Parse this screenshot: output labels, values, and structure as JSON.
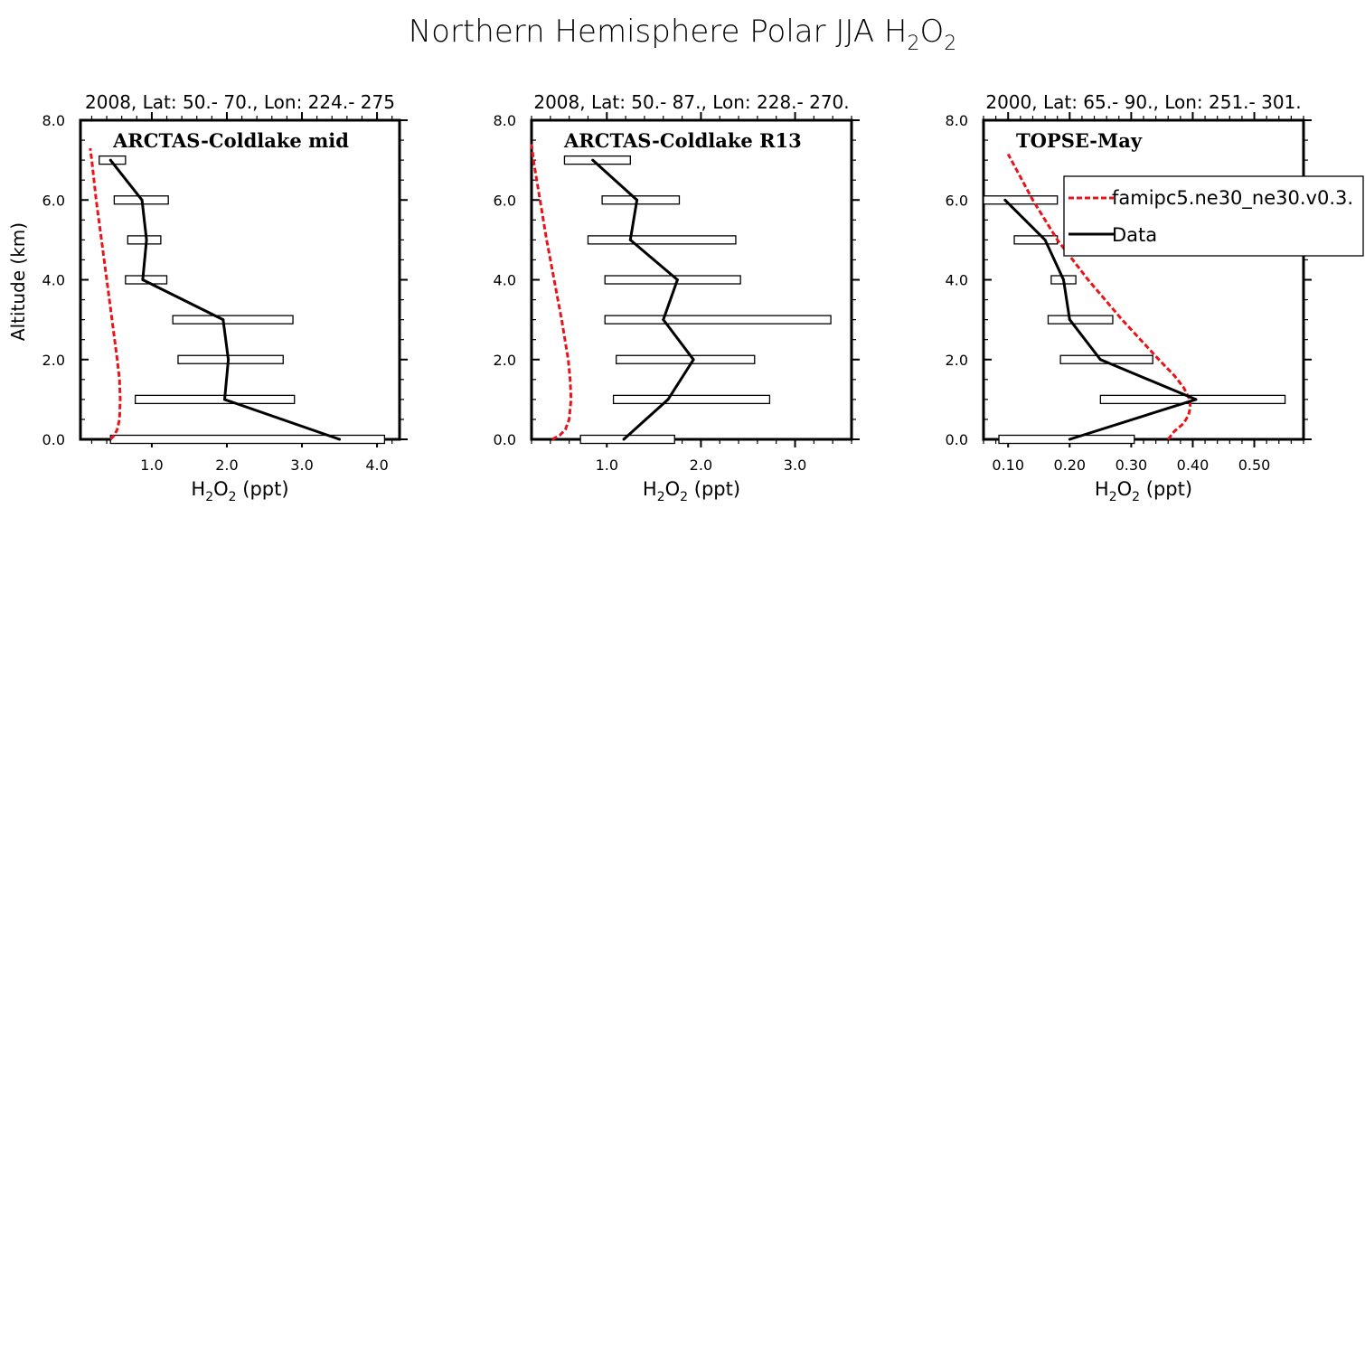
{
  "figure": {
    "title_main": "Northern Hemisphere Polar JJA H",
    "title_sub1": "2",
    "title_mid": "O",
    "title_sub2": "2"
  },
  "colors": {
    "model": "#e8141a",
    "data": "#000000"
  },
  "legend": {
    "model_label": "famipc5.ne30_ne30.v0.3.",
    "data_label": "Data"
  },
  "chart_data": [
    {
      "type": "line",
      "panel_label": "ARCTAS-Coldlake mid",
      "region": "2008, Lat:  50.- 70., Lon: 224.- 275",
      "xlabel": "H2O2 (ppt)",
      "ylabel": "Altitude (km)",
      "xlim": [
        0.05,
        4.3
      ],
      "ylim": [
        0,
        8
      ],
      "xticks": [
        1.0,
        2.0,
        3.0,
        4.0
      ],
      "xtick_labels": [
        "1.0",
        "2.0",
        "3.0",
        "4.0"
      ],
      "yticks": [
        0,
        2,
        4,
        6,
        8
      ],
      "ytick_labels": [
        "0.0",
        "2.0",
        "4.0",
        "6.0",
        "8.0"
      ],
      "data": {
        "altitude": [
          0,
          1,
          2,
          3,
          4,
          5,
          6,
          7
        ],
        "h2o2": [
          3.5,
          1.97,
          2.02,
          1.95,
          0.88,
          0.93,
          0.87,
          0.45
        ],
        "box_min": [
          0.45,
          0.78,
          1.35,
          1.28,
          0.65,
          0.68,
          0.5,
          0.3
        ],
        "box_max": [
          4.1,
          2.9,
          2.75,
          2.88,
          1.2,
          1.12,
          1.22,
          0.65
        ]
      },
      "model": {
        "altitude": [
          0.0,
          0.1,
          0.25,
          0.5,
          1.0,
          1.5,
          2.0,
          3.0,
          4.0,
          5.0,
          6.0,
          7.0,
          7.3
        ],
        "h2o2": [
          0.45,
          0.5,
          0.54,
          0.57,
          0.58,
          0.57,
          0.54,
          0.47,
          0.4,
          0.33,
          0.26,
          0.2,
          0.18
        ]
      }
    },
    {
      "type": "line",
      "panel_label": "ARCTAS-Coldlake R13",
      "region": "2008, Lat:  50.- 87., Lon: 228.- 270.",
      "xlabel": "H2O2 (ppt)",
      "ylabel": "",
      "xlim": [
        0.2,
        3.6
      ],
      "ylim": [
        0,
        8
      ],
      "xticks": [
        1.0,
        2.0,
        3.0
      ],
      "xtick_labels": [
        "1.0",
        "2.0",
        "3.0"
      ],
      "yticks": [
        0,
        2,
        4,
        6,
        8
      ],
      "ytick_labels": [
        "0.0",
        "2.0",
        "4.0",
        "6.0",
        "8.0"
      ],
      "data": {
        "altitude": [
          0,
          1,
          2,
          3,
          4,
          5,
          6,
          7
        ],
        "h2o2": [
          1.18,
          1.65,
          1.92,
          1.6,
          1.75,
          1.25,
          1.32,
          0.85
        ],
        "box_min": [
          0.72,
          1.07,
          1.1,
          0.98,
          0.98,
          0.8,
          0.95,
          0.55
        ],
        "box_max": [
          1.72,
          2.73,
          2.57,
          3.38,
          2.42,
          2.37,
          1.77,
          1.25
        ]
      },
      "model": {
        "altitude": [
          0.0,
          0.1,
          0.25,
          0.5,
          1.0,
          1.5,
          2.0,
          3.0,
          4.0,
          5.0,
          6.0,
          7.0,
          7.4
        ],
        "h2o2": [
          0.42,
          0.5,
          0.56,
          0.6,
          0.62,
          0.61,
          0.59,
          0.52,
          0.44,
          0.36,
          0.29,
          0.22,
          0.2
        ]
      }
    },
    {
      "type": "line",
      "panel_label": "TOPSE-May",
      "region": "2000, Lat: 65.- 90., Lon: 251.- 301.",
      "xlabel": "H2O2 (ppt)",
      "ylabel": "",
      "xlim": [
        0.06,
        0.58
      ],
      "ylim": [
        0,
        8
      ],
      "xticks": [
        0.1,
        0.2,
        0.3,
        0.4,
        0.5
      ],
      "xtick_labels": [
        "0.10",
        "0.20",
        "0.30",
        "0.40",
        "0.50"
      ],
      "yticks": [
        0,
        2,
        4,
        6,
        8
      ],
      "ytick_labels": [
        "0.0",
        "2.0",
        "4.0",
        "6.0",
        "8.0"
      ],
      "data": {
        "altitude": [
          0,
          1,
          2,
          3,
          4,
          5,
          6
        ],
        "h2o2": [
          0.2,
          0.405,
          0.25,
          0.2,
          0.19,
          0.16,
          0.095
        ],
        "box_min": [
          0.085,
          0.25,
          0.185,
          0.165,
          0.17,
          0.11,
          0.06
        ],
        "box_max": [
          0.305,
          0.55,
          0.335,
          0.27,
          0.21,
          0.18,
          0.18
        ]
      },
      "model": {
        "altitude": [
          0.0,
          0.2,
          0.4,
          0.6,
          0.8,
          1.0,
          1.3,
          1.6,
          2.0,
          3.0,
          4.0,
          5.0,
          6.0,
          7.15
        ],
        "h2o2": [
          0.36,
          0.37,
          0.385,
          0.393,
          0.396,
          0.395,
          0.385,
          0.37,
          0.345,
          0.285,
          0.23,
          0.18,
          0.14,
          0.1
        ]
      }
    }
  ]
}
